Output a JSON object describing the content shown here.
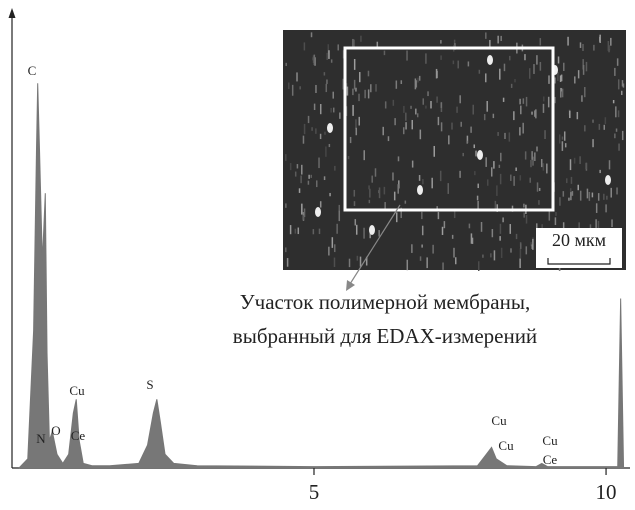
{
  "chart_data": {
    "type": "area",
    "x": [
      -0.05,
      0.1,
      0.2,
      0.25,
      0.27,
      0.3,
      0.35,
      0.4,
      0.43,
      0.47,
      0.52,
      0.6,
      0.7,
      0.8,
      0.88,
      0.93,
      0.98,
      1.05,
      1.2,
      1.5,
      2.0,
      2.15,
      2.25,
      2.31,
      2.37,
      2.45,
      2.6,
      3.0,
      5.0,
      7.8,
      7.95,
      8.04,
      8.12,
      8.3,
      8.8,
      8.9,
      9.0,
      10.2,
      10.25,
      10.3
    ],
    "values": [
      0,
      2,
      30,
      70,
      84,
      70,
      45,
      60,
      25,
      6,
      8,
      3,
      1,
      3,
      12,
      15,
      6,
      1,
      0.5,
      0.5,
      1,
      5,
      12,
      15,
      10,
      3,
      1,
      0.5,
      0.3,
      0.5,
      3,
      4.5,
      2,
      0.5,
      0.3,
      1,
      0.3,
      0.3,
      37,
      0
    ],
    "color": "#777777",
    "xlim": [
      -0.17,
      10.41
    ],
    "ylim": [
      0,
      100
    ],
    "xticks": [
      5,
      10
    ],
    "peak_labels": [
      "C",
      "N",
      "O",
      "Cu",
      "Ce",
      "S",
      "Cu",
      "Cu",
      "Cu",
      "Ce"
    ],
    "caption": [
      "Участок полимерной мембраны,",
      "выбранный для EDAX-измерений"
    ],
    "scale_bar": "20 мкм"
  }
}
